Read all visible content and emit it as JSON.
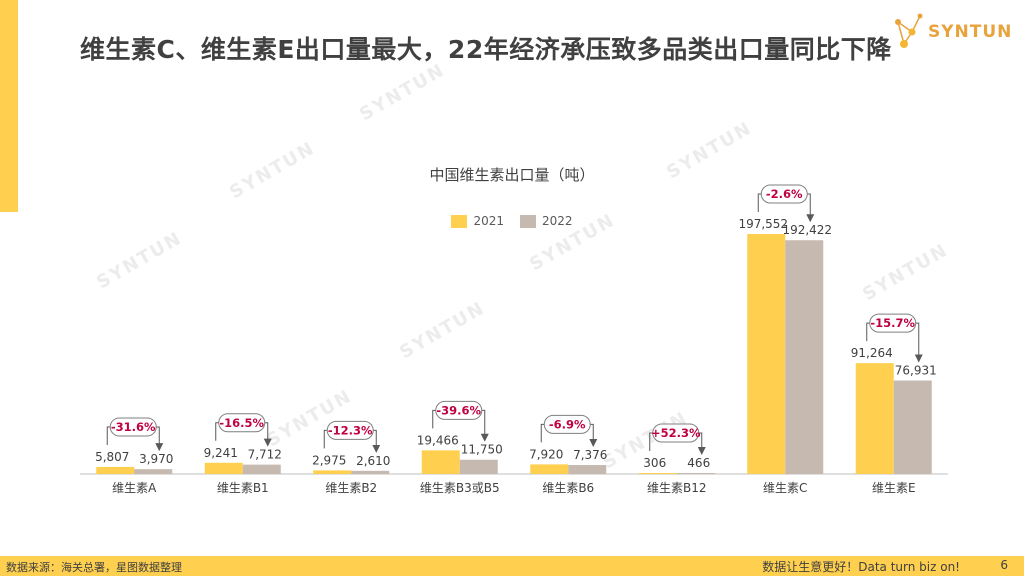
{
  "header": {
    "title": "维生素C、维生素E出口量最大，22年经济承压致多品类出口量同比下降",
    "logo_text": "SYNTUN"
  },
  "watermark": "SYNTUN",
  "colors": {
    "accent": "#FFD04F",
    "series_2021": "#FFD04F",
    "series_2022": "#C6B9B0",
    "change": "#C00040"
  },
  "chart_data": {
    "type": "bar",
    "title": "中国维生素出口量（吨）",
    "categories": [
      "维生素A",
      "维生素B1",
      "维生素B2",
      "维生素B3或B5",
      "维生素B6",
      "维生素B12",
      "维生素C",
      "维生素E"
    ],
    "series": [
      {
        "name": "2021",
        "values": [
          5807,
          9241,
          2975,
          19466,
          7920,
          306,
          197552,
          91264
        ],
        "labels": [
          "5,807",
          "9,241",
          "2,975",
          "19,466",
          "7,920",
          "306",
          "197,552",
          "91,264"
        ]
      },
      {
        "name": "2022",
        "values": [
          3970,
          7712,
          2610,
          11750,
          7376,
          466,
          192422,
          76931
        ],
        "labels": [
          "3,970",
          "7,712",
          "2,610",
          "11,750",
          "7,376",
          "466",
          "192,422",
          "76,931"
        ]
      }
    ],
    "changes": [
      "-31.6%",
      "-16.5%",
      "-12.3%",
      "-39.6%",
      "-6.9%",
      "+52.3%",
      "-2.6%",
      "-15.7%"
    ],
    "legend": "top",
    "grid": false
  },
  "footer": {
    "source": "数据来源：海关总署，星图数据整理",
    "slogan": "数据让生意更好！Data turn biz on!",
    "page": "6"
  }
}
